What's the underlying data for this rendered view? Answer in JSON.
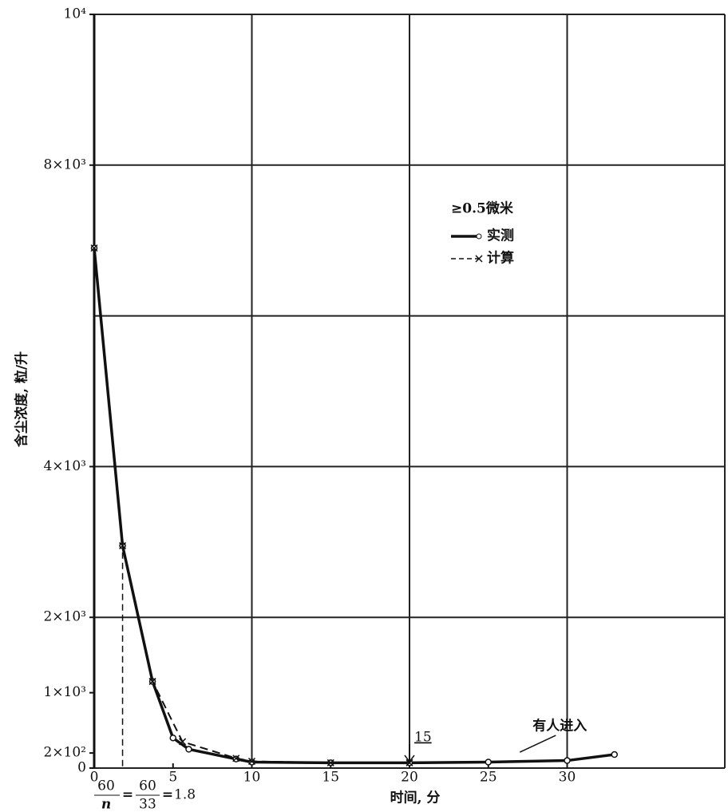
{
  "chart_data": {
    "type": "line",
    "x_label": "时间, 分",
    "y_label": "含尘浓度, 粒/升",
    "xlim": [
      0,
      40
    ],
    "xticks": [
      0,
      5,
      10,
      15,
      20,
      25,
      30
    ],
    "xgrid": [
      0,
      10,
      20,
      30,
      40
    ],
    "ylim": [
      0,
      10000
    ],
    "yticks": [
      {
        "value": 10000,
        "label": "10⁴"
      },
      {
        "value": 8000,
        "label": "8×10³"
      },
      {
        "value": 4000,
        "label": "4×10³"
      },
      {
        "value": 2000,
        "label": "2×10³"
      },
      {
        "value": 1000,
        "label": "1×10³"
      },
      {
        "value": 200,
        "label": "2×10²"
      },
      0
    ],
    "ygrid": [
      0,
      2000,
      4000,
      6000,
      8000,
      10000
    ],
    "legend_title": "≥0.5微米",
    "series": [
      {
        "name": "实测",
        "color": "#111111",
        "marker": "circle",
        "dash": false,
        "x": [
          0,
          1.8,
          3.7,
          5,
          6,
          9,
          10,
          15,
          20,
          25,
          30,
          33
        ],
        "values": [
          6900,
          2950,
          1150,
          400,
          250,
          120,
          80,
          70,
          70,
          80,
          100,
          180
        ]
      },
      {
        "name": "计算",
        "color": "#111111",
        "marker": "cross",
        "dash": true,
        "x": [
          0,
          1.8,
          3.7,
          5.6,
          9,
          10,
          15,
          20
        ],
        "values": [
          6900,
          2950,
          1150,
          350,
          130,
          90,
          70,
          70
        ]
      }
    ],
    "annotation": {
      "text": "有人进入",
      "x": 27,
      "y": 180
    },
    "arrow_marker": {
      "label": "15",
      "x": 20
    },
    "formula": {
      "parts": [
        "60",
        "n",
        "60",
        "33",
        "1.8"
      ],
      "x": 1.8
    }
  }
}
